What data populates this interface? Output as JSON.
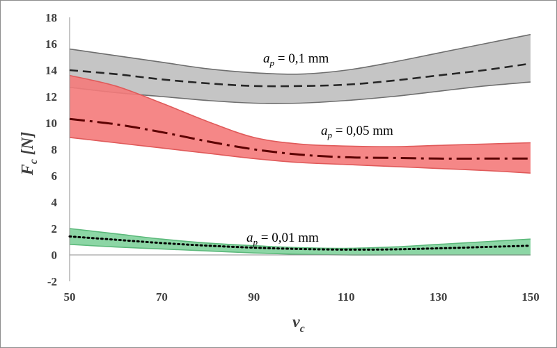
{
  "chart_data": {
    "type": "area",
    "xlabel": {
      "main": "v",
      "sub": "c"
    },
    "ylabel": {
      "main": "F",
      "sub": "c",
      "rest": " [N]"
    },
    "xlim": [
      50,
      150
    ],
    "ylim": [
      -2,
      18
    ],
    "x_ticks": [
      50,
      70,
      90,
      110,
      130,
      150
    ],
    "y_ticks": [
      -2,
      0,
      2,
      4,
      6,
      8,
      10,
      12,
      14,
      16,
      18
    ],
    "grid": false,
    "series": [
      {
        "label": {
          "prefix": "a",
          "sub": "p",
          "text": " = 0,1 mm"
        },
        "line_style": "dashed",
        "band_color": "#bfbfbf",
        "band_edge_color": "#6e6e6e",
        "line_color": "#262626",
        "x": [
          50,
          60,
          70,
          80,
          90,
          100,
          110,
          120,
          130,
          140,
          150
        ],
        "mean": [
          14.0,
          13.7,
          13.3,
          13.0,
          12.8,
          12.8,
          12.9,
          13.2,
          13.6,
          14.0,
          14.5
        ],
        "upper": [
          15.6,
          15.1,
          14.6,
          14.1,
          13.8,
          13.7,
          14.0,
          14.6,
          15.3,
          16.0,
          16.7
        ],
        "lower": [
          12.7,
          12.3,
          12.0,
          11.7,
          11.5,
          11.5,
          11.7,
          12.0,
          12.4,
          12.8,
          13.1
        ]
      },
      {
        "label": {
          "prefix": "a",
          "sub": "p",
          "text": " = 0,05 mm"
        },
        "line_style": "dash-dot",
        "band_color": "#f47a7a",
        "band_edge_color": "#e05a5a",
        "line_color": "#5c0000",
        "x": [
          50,
          60,
          70,
          80,
          90,
          100,
          110,
          120,
          130,
          140,
          150
        ],
        "mean": [
          10.3,
          9.9,
          9.3,
          8.6,
          8.0,
          7.6,
          7.4,
          7.35,
          7.3,
          7.3,
          7.3
        ],
        "upper": [
          13.6,
          12.8,
          11.5,
          10.1,
          8.9,
          8.4,
          8.25,
          8.2,
          8.3,
          8.4,
          8.5
        ],
        "lower": [
          8.9,
          8.5,
          8.1,
          7.7,
          7.3,
          7.0,
          6.85,
          6.7,
          6.55,
          6.4,
          6.2
        ]
      },
      {
        "label": {
          "prefix": "a",
          "sub": "p",
          "text": " = 0,01 mm"
        },
        "line_style": "dotted",
        "band_color": "#7fd19b",
        "band_edge_color": "#5cb97b",
        "line_color": "#000000",
        "x": [
          50,
          60,
          70,
          80,
          90,
          100,
          110,
          120,
          130,
          140,
          150
        ],
        "mean": [
          1.4,
          1.15,
          0.9,
          0.7,
          0.55,
          0.45,
          0.4,
          0.42,
          0.5,
          0.6,
          0.7
        ],
        "upper": [
          2.0,
          1.6,
          1.2,
          0.9,
          0.7,
          0.55,
          0.5,
          0.6,
          0.8,
          1.0,
          1.2
        ],
        "lower": [
          0.8,
          0.6,
          0.45,
          0.3,
          0.15,
          0.05,
          0.0,
          0.0,
          0.0,
          0.0,
          0.0
        ]
      }
    ]
  }
}
